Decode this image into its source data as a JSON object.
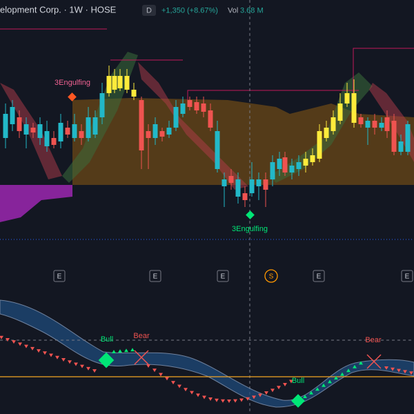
{
  "header": {
    "title": "elopment Corp. · 1W · HOSE",
    "interval_badge": "D",
    "change": "+1,350 (+8.67%)",
    "volume_label": "Vol",
    "volume": "3.68 M"
  },
  "annotations": {
    "pattern_top": "3Engulfing",
    "pattern_bottom": "3Engulfing"
  },
  "events": [
    "E",
    "E",
    "E",
    "S",
    "E",
    "E"
  ],
  "oscillator": {
    "bull_1": "Bull",
    "bear_1": "Bear",
    "bear_2": "Bear",
    "bull_2": "Bull"
  }
}
